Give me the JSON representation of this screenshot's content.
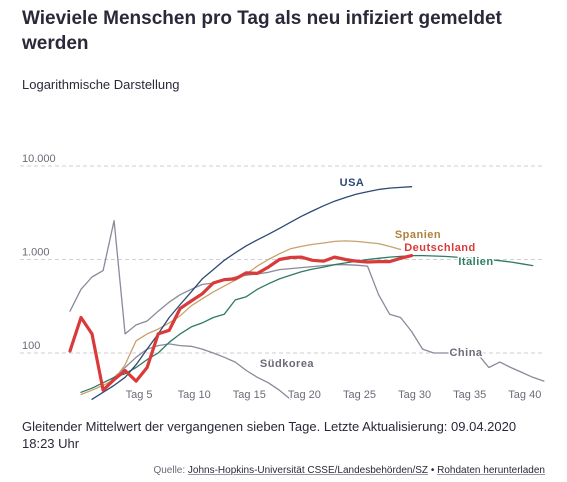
{
  "header": {
    "title": "Wieviele Menschen pro Tag als neu infiziert gemeldet werden",
    "subtitle": "Logarithmische Darstellung"
  },
  "footer": {
    "note": "Gleitender Mittelwert der vergangenen sieben Tage. Letzte Aktualisierung: 09.04.2020 18:23 Uhr",
    "source_prefix": "Quelle:",
    "source_link": "Johns-Hopkins-Universität CSSE/Landesbehörden/SZ",
    "source_separator": "•",
    "download_link": "Rohdaten herunterladen"
  },
  "chart_data": {
    "type": "line",
    "title": "",
    "xlabel": "",
    "ylabel": "",
    "x_ticks": [
      {
        "value": 5,
        "label": "Tag 5"
      },
      {
        "value": 10,
        "label": "Tag 10"
      },
      {
        "value": 15,
        "label": "Tag 15"
      },
      {
        "value": 20,
        "label": "Tag 20"
      },
      {
        "value": 25,
        "label": "Tag 25"
      },
      {
        "value": 30,
        "label": "Tag 30"
      },
      {
        "value": 35,
        "label": "Tag 35"
      },
      {
        "value": 40,
        "label": "Tag 40"
      }
    ],
    "y_ticks": [
      {
        "value": 100,
        "label": "100"
      },
      {
        "value": 1000,
        "label": "1.000"
      },
      {
        "value": 10000,
        "label": "10.000"
      }
    ],
    "xlim": [
      0,
      43
    ],
    "ylim": [
      30,
      15000
    ],
    "y_scale": "log",
    "grid": "horizontal-dashed",
    "series": [
      {
        "name": "China",
        "color": "#8a8a99",
        "width": 1.3,
        "x": [
          0,
          1,
          2,
          3,
          4,
          5,
          6,
          7,
          8,
          9,
          10,
          11,
          12,
          13,
          14,
          15,
          16,
          17,
          18,
          19,
          20,
          21,
          22,
          23,
          24,
          25,
          26,
          27,
          28,
          29,
          30,
          31,
          32,
          33,
          34,
          35,
          36,
          37,
          38,
          39,
          40,
          41,
          42,
          43
        ],
        "y": [
          280,
          480,
          650,
          760,
          2600,
          160,
          200,
          220,
          280,
          350,
          420,
          480,
          540,
          560,
          600,
          650,
          680,
          700,
          730,
          780,
          800,
          820,
          840,
          860,
          880,
          880,
          870,
          850,
          420,
          260,
          240,
          170,
          110,
          100,
          100,
          100,
          100,
          98,
          70,
          80,
          70,
          62,
          55,
          50
        ]
      },
      {
        "name": "Südkorea",
        "color": "#8a8a99",
        "width": 1.3,
        "x": [
          3,
          4,
          5,
          6,
          7,
          8,
          9,
          10,
          11,
          12,
          13,
          14,
          15,
          16,
          17,
          18,
          19,
          20
        ],
        "y": [
          40,
          55,
          70,
          90,
          110,
          120,
          125,
          120,
          118,
          110,
          100,
          90,
          80,
          65,
          55,
          48,
          40,
          32
        ]
      },
      {
        "name": "Spanien",
        "color": "#c8a16e",
        "width": 1.3,
        "x": [
          1,
          2,
          3,
          4,
          5,
          6,
          7,
          8,
          9,
          10,
          11,
          12,
          13,
          14,
          15,
          16,
          17,
          18,
          19,
          20,
          21,
          22,
          23,
          24,
          25,
          26,
          27,
          28,
          29,
          30
        ],
        "y": [
          36,
          40,
          45,
          52,
          75,
          135,
          160,
          180,
          210,
          250,
          320,
          380,
          450,
          520,
          600,
          700,
          850,
          1000,
          1150,
          1300,
          1380,
          1450,
          1500,
          1560,
          1580,
          1560,
          1520,
          1480,
          1380,
          1280
        ]
      },
      {
        "name": "Italien",
        "color": "#2f7a62",
        "width": 1.3,
        "x": [
          1,
          2,
          3,
          4,
          5,
          6,
          7,
          8,
          9,
          10,
          11,
          12,
          13,
          14,
          15,
          16,
          17,
          18,
          19,
          20,
          21,
          22,
          23,
          24,
          25,
          26,
          27,
          28,
          29,
          30,
          31,
          32,
          33,
          34,
          35,
          36,
          37,
          38,
          39,
          40,
          41,
          42
        ],
        "y": [
          38,
          42,
          48,
          55,
          60,
          70,
          85,
          100,
          130,
          160,
          190,
          210,
          240,
          260,
          370,
          400,
          480,
          550,
          620,
          680,
          740,
          790,
          830,
          880,
          920,
          960,
          1000,
          1030,
          1060,
          1080,
          1100,
          1100,
          1090,
          1080,
          1060,
          1040,
          1020,
          1000,
          970,
          940,
          900,
          860
        ]
      },
      {
        "name": "Deutschland",
        "color": "#d93a3a",
        "width": 3.2,
        "x": [
          0,
          1,
          2,
          3,
          4,
          5,
          6,
          7,
          8,
          9,
          10,
          11,
          12,
          13,
          14,
          15,
          16,
          17,
          18,
          19,
          20,
          21,
          22,
          23,
          24,
          25,
          26,
          27,
          28,
          29,
          30,
          31
        ],
        "y": [
          105,
          240,
          160,
          40,
          52,
          65,
          50,
          70,
          160,
          175,
          300,
          360,
          430,
          560,
          610,
          620,
          720,
          710,
          830,
          1000,
          1050,
          1060,
          980,
          960,
          1060,
          1000,
          960,
          940,
          950,
          950,
          1030,
          1100
        ]
      },
      {
        "name": "USA",
        "color": "#2c4a74",
        "width": 1.3,
        "x": [
          2,
          3,
          4,
          5,
          6,
          7,
          8,
          9,
          10,
          11,
          12,
          13,
          14,
          15,
          16,
          17,
          18,
          19,
          20,
          21,
          22,
          23,
          24,
          25,
          26,
          27,
          28,
          29,
          30,
          31
        ],
        "y": [
          32,
          38,
          45,
          55,
          75,
          110,
          160,
          240,
          330,
          450,
          620,
          780,
          980,
          1180,
          1400,
          1620,
          1860,
          2150,
          2500,
          2900,
          3300,
          3750,
          4200,
          4600,
          5000,
          5300,
          5600,
          5800,
          5900,
          6000
        ]
      }
    ],
    "annotations": [
      {
        "text": "USA",
        "series": "USA",
        "color": "#2c4a74"
      },
      {
        "text": "Spanien",
        "series": "Spanien",
        "color": "#b0823a"
      },
      {
        "text": "Deutschland",
        "series": "Deutschland",
        "color": "#d93a3a"
      },
      {
        "text": "Italien",
        "series": "Italien",
        "color": "#2f7a62"
      },
      {
        "text": "China",
        "series": "China",
        "color": "#6b6b78"
      },
      {
        "text": "Südkorea",
        "series": "Südkorea",
        "color": "#6b6b78"
      }
    ]
  }
}
